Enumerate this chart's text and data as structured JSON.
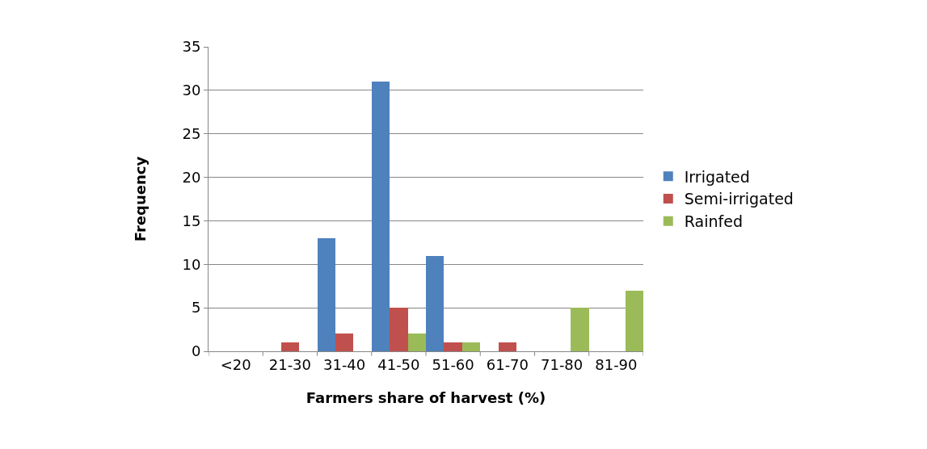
{
  "chart_data": {
    "type": "bar",
    "xlabel": "Farmers share of harvest (%)",
    "ylabel": "Frequency",
    "categories": [
      "<20",
      "21-30",
      "31-40",
      "41-50",
      "51-60",
      "61-70",
      "71-80",
      "81-90"
    ],
    "series": [
      {
        "name": "Irrigated",
        "color": "#4f81bd",
        "values": [
          0,
          0,
          13,
          31,
          11,
          0,
          0,
          0
        ]
      },
      {
        "name": "Semi-irrigated",
        "color": "#c0504d",
        "values": [
          0,
          1,
          2,
          5,
          1,
          1,
          0,
          0
        ]
      },
      {
        "name": "Rainfed",
        "color": "#9bbb59",
        "values": [
          0,
          0,
          0,
          2,
          1,
          0,
          5,
          7
        ]
      }
    ],
    "ylim": [
      0,
      35
    ],
    "yticks": [
      0,
      5,
      10,
      15,
      20,
      25,
      30,
      35
    ],
    "grid": "y",
    "legend": "right"
  }
}
